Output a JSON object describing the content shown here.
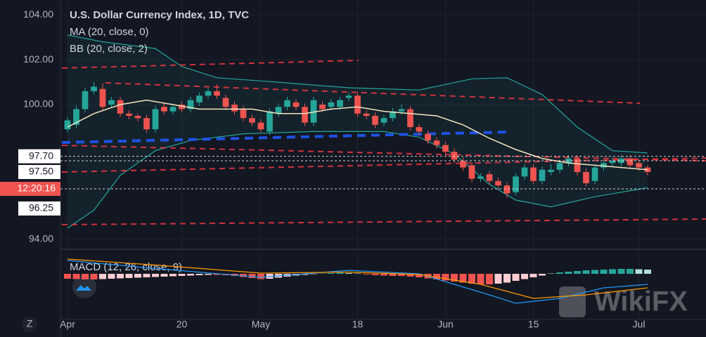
{
  "chart_data": {
    "type": "candlestick",
    "title": "U.S. Dollar Currency Index, 1D, TVC",
    "indicators": [
      "MA (20, close, 0)",
      "BB (20, close, 2)"
    ],
    "macd_title": "MACD (12, 26, close, 9)",
    "watermark": "WikiFX",
    "timezone_button": "Z",
    "up_color": "#26a69a",
    "down_color": "#ef5350",
    "ylim": [
      93.56,
      104.66
    ],
    "yticks": [
      {
        "value": 94,
        "label": "94.00"
      },
      {
        "value": 100,
        "label": "100.00"
      },
      {
        "value": 102,
        "label": "102.00"
      },
      {
        "value": 104,
        "label": "104.00"
      }
    ],
    "xlim": [
      -0.8,
      72.64
    ],
    "xticks": [
      {
        "value": 0,
        "label": "Apr"
      },
      {
        "value": 13,
        "label": "20"
      },
      {
        "value": 22,
        "label": "May"
      },
      {
        "value": 33,
        "label": "18"
      },
      {
        "value": 43,
        "label": "Jun"
      },
      {
        "value": 53,
        "label": "15"
      },
      {
        "value": 65,
        "label": "Jul"
      }
    ],
    "price_lines": [
      {
        "value": 97.7,
        "label": "97.70"
      },
      {
        "value": 97.5,
        "label": "97.50"
      },
      {
        "value": 96.25,
        "label": "96.25"
      }
    ],
    "countdown": "12:20:16",
    "open": [
      98.9,
      99.1,
      99.8,
      100.6,
      100.7,
      100.0,
      100.2,
      99.6,
      99.5,
      99.4,
      98.9,
      99.9,
      99.7,
      100.0,
      99.8,
      100.1,
      100.4,
      100.6,
      100.3,
      100.0,
      99.8,
      99.4,
      99.2,
      98.8,
      99.6,
      99.9,
      100.1,
      99.9,
      99.2,
      100.0,
      99.9,
      99.9,
      100.3,
      100.4,
      99.6,
      99.5,
      99.2,
      99.4,
      99.7,
      99.8,
      99.0,
      98.7,
      98.4,
      98.2,
      97.9,
      97.5,
      97.3,
      96.7,
      96.9,
      96.6,
      96.4,
      96.1,
      96.8,
      97.2,
      96.6,
      97.0,
      97.1,
      97.4,
      97.6,
      97.0,
      96.6,
      97.2,
      97.4,
      97.4,
      97.6,
      97.4,
      97.2
    ],
    "close": [
      99.3,
      99.8,
      100.6,
      100.8,
      99.9,
      100.2,
      99.6,
      99.5,
      99.4,
      98.9,
      99.8,
      99.7,
      99.9,
      99.8,
      100.2,
      100.4,
      100.6,
      100.4,
      99.9,
      99.7,
      99.4,
      99.2,
      98.9,
      99.7,
      99.9,
      100.2,
      99.9,
      99.2,
      100.2,
      99.8,
      100.1,
      100.2,
      100.4,
      99.6,
      99.5,
      99.1,
      99.4,
      99.7,
      99.8,
      99.0,
      98.8,
      98.4,
      98.2,
      97.9,
      97.55,
      97.2,
      96.7,
      96.8,
      96.6,
      96.4,
      96.05,
      96.8,
      97.2,
      96.6,
      97.1,
      97.1,
      97.4,
      97.6,
      97.0,
      96.5,
      97.2,
      97.4,
      97.5,
      97.6,
      97.3,
      97.2,
      97.0
    ],
    "high": [
      99.45,
      99.95,
      100.75,
      101.0,
      100.95,
      100.35,
      100.35,
      99.75,
      99.6,
      99.55,
      99.95,
      100.05,
      100.05,
      100.15,
      100.35,
      100.55,
      100.75,
      100.9,
      100.45,
      100.15,
      99.95,
      99.55,
      99.35,
      99.85,
      100.05,
      100.35,
      100.25,
      100.05,
      100.35,
      100.15,
      100.25,
      100.35,
      100.55,
      100.55,
      99.75,
      99.65,
      99.55,
      99.85,
      100.0,
      99.95,
      99.15,
      98.85,
      98.55,
      98.35,
      98.05,
      97.65,
      97.45,
      96.95,
      97.05,
      96.75,
      96.55,
      96.95,
      97.35,
      97.35,
      97.25,
      97.35,
      97.55,
      97.75,
      97.75,
      97.15,
      97.35,
      97.55,
      97.65,
      97.75,
      97.75,
      97.55,
      97.3
    ],
    "low": [
      98.75,
      98.95,
      99.65,
      100.45,
      99.75,
      99.85,
      99.45,
      99.35,
      99.25,
      98.75,
      98.75,
      99.55,
      99.55,
      99.65,
      99.65,
      99.95,
      100.25,
      100.25,
      99.75,
      99.55,
      99.25,
      99.05,
      98.75,
      98.65,
      99.45,
      99.75,
      99.75,
      99.05,
      99.05,
      99.65,
      99.75,
      99.75,
      100.15,
      99.45,
      99.35,
      98.95,
      99.05,
      99.25,
      99.55,
      98.85,
      98.65,
      98.25,
      98.05,
      97.75,
      97.4,
      97.05,
      96.55,
      96.55,
      96.45,
      96.25,
      95.85,
      95.95,
      96.65,
      96.45,
      96.45,
      96.85,
      96.95,
      97.25,
      96.85,
      96.35,
      96.45,
      97.05,
      97.25,
      97.25,
      97.15,
      97.05,
      96.85
    ],
    "ma": {
      "color": "#f3e5c0",
      "x": [
        0,
        3,
        6,
        9,
        12,
        15,
        18,
        21,
        24,
        27,
        30,
        33,
        36,
        39,
        42,
        45,
        48,
        51,
        54,
        57,
        60,
        63,
        66
      ],
      "values": [
        99.0,
        99.6,
        100.0,
        100.2,
        100.0,
        99.8,
        99.8,
        99.8,
        99.6,
        99.6,
        99.8,
        99.9,
        99.7,
        99.6,
        99.5,
        99.1,
        98.5,
        98.0,
        97.6,
        97.4,
        97.3,
        97.2,
        97.1
      ]
    },
    "bb_upper": {
      "color": "#26a69a",
      "x": [
        0,
        4,
        10,
        13,
        17,
        24,
        32,
        40,
        46,
        50,
        54,
        58,
        62,
        66
      ],
      "values": [
        103.1,
        102.8,
        102.5,
        101.7,
        101.2,
        101.0,
        100.75,
        100.65,
        101.15,
        101.2,
        100.45,
        99.0,
        97.95,
        97.85
      ]
    },
    "bb_lower": {
      "color": "#26a69a",
      "x": [
        0,
        3,
        6,
        10,
        14,
        20,
        28,
        36,
        40,
        44,
        48,
        51,
        55,
        60,
        66
      ],
      "values": [
        94.5,
        95.3,
        96.85,
        97.95,
        98.4,
        98.7,
        98.8,
        98.8,
        98.55,
        97.8,
        96.45,
        95.75,
        95.45,
        95.9,
        96.3
      ]
    },
    "macd_ylim": [
      -1.3,
      0.68
    ],
    "macd_hist": [
      -0.14,
      -0.15,
      -0.16,
      -0.16,
      -0.15,
      -0.14,
      -0.13,
      -0.12,
      -0.11,
      -0.1,
      -0.09,
      -0.08,
      -0.07,
      -0.06,
      -0.05,
      -0.04,
      -0.03,
      -0.03,
      -0.04,
      -0.06,
      -0.09,
      -0.12,
      -0.15,
      -0.14,
      -0.11,
      -0.08,
      -0.05,
      -0.03,
      -0.01,
      0.01,
      0.02,
      0.03,
      0.02,
      0.01,
      -0.02,
      -0.04,
      -0.05,
      -0.06,
      -0.06,
      -0.08,
      -0.1,
      -0.13,
      -0.16,
      -0.19,
      -0.22,
      -0.25,
      -0.28,
      -0.3,
      -0.3,
      -0.28,
      -0.25,
      -0.2,
      -0.15,
      -0.1,
      -0.05,
      0.01,
      0.04,
      0.06,
      0.08,
      0.1,
      0.11,
      0.12,
      0.13,
      0.14,
      0.14,
      0.13,
      0.12
    ],
    "macd_line": {
      "color": "#2196f3",
      "x": [
        0,
        10,
        22,
        32,
        40,
        48,
        51,
        56,
        61,
        66
      ],
      "values": [
        0.38,
        0.15,
        -0.1,
        0.1,
        0.0,
        -0.6,
        -0.84,
        -0.7,
        -0.4,
        -0.3
      ]
    },
    "signal_line": {
      "color": "#ff9800",
      "x": [
        0,
        10,
        22,
        32,
        40,
        47,
        53,
        59,
        66
      ],
      "values": [
        0.42,
        0.25,
        0.02,
        0.05,
        -0.02,
        -0.3,
        -0.7,
        -0.6,
        -0.4
      ]
    }
  }
}
